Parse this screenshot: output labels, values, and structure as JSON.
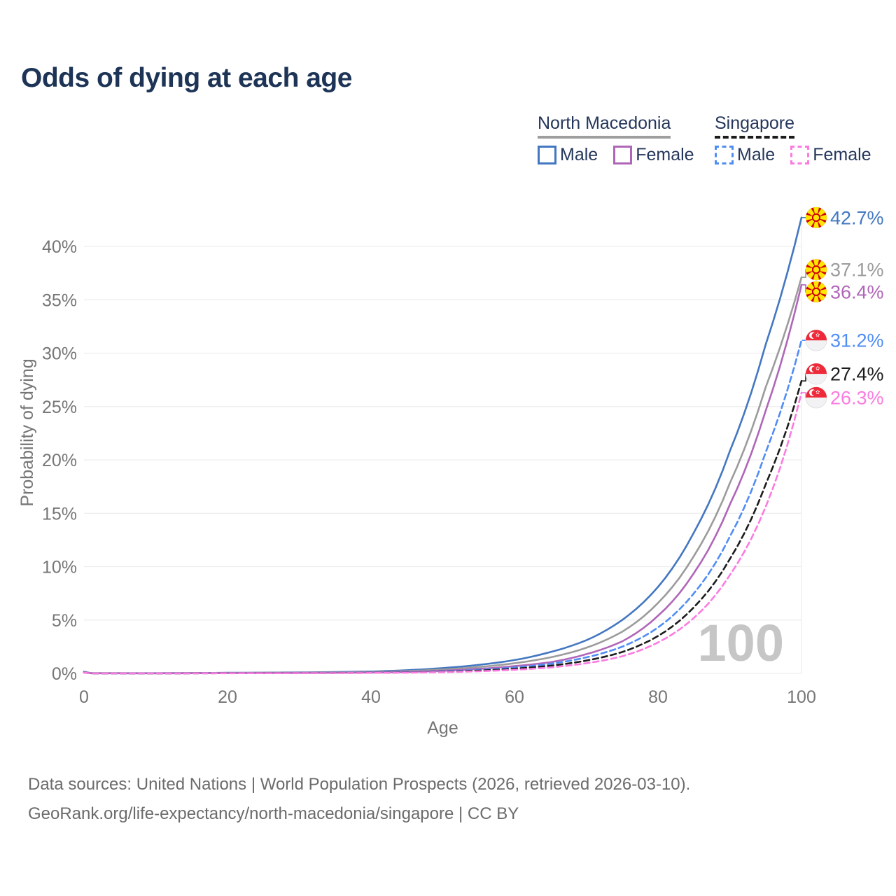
{
  "title": "Odds of dying at each age",
  "colors": {
    "title_text": "#1d3456",
    "legend_text": "#24365b",
    "axis_text": "#767676",
    "gridline": "#ededed",
    "watermark": "#c6c6c6",
    "footer_text": "#6b6b6b",
    "nm_male": "#4377c1",
    "nm_both": "#9b9b9b",
    "nm_female": "#b066b8",
    "sg_male": "#4f8df5",
    "sg_both": "#1c1c1c",
    "sg_female": "#fb7be0"
  },
  "legend": {
    "groups": [
      {
        "title": "North Macedonia",
        "line_style": "solid",
        "line_color": "#9e9e9e",
        "entries": [
          {
            "label": "Male",
            "color": "#4377c1",
            "dashed": false
          },
          {
            "label": "Female",
            "color": "#b066b8",
            "dashed": false
          }
        ]
      },
      {
        "title": "Singapore",
        "line_style": "dashed",
        "line_color": "#1c1c1c",
        "entries": [
          {
            "label": "Male",
            "color": "#4f8df5",
            "dashed": true
          },
          {
            "label": "Female",
            "color": "#fb7be0",
            "dashed": true
          }
        ]
      }
    ]
  },
  "chart_data": {
    "type": "line",
    "title": "Odds of dying at each age",
    "xlabel": "Age",
    "ylabel": "Probability of dying",
    "xlim": [
      0,
      100
    ],
    "ylim": [
      0,
      43.5
    ],
    "x_ticks": [
      0,
      20,
      40,
      60,
      80,
      100
    ],
    "y_ticks_percent": [
      0,
      5,
      10,
      15,
      20,
      25,
      30,
      35,
      40
    ],
    "grid": true,
    "watermark": "100",
    "unit": "percent probability of dying at each age",
    "anchor_ages": [
      0,
      1,
      10,
      20,
      30,
      40,
      50,
      55,
      60,
      65,
      70,
      75,
      80,
      85,
      90,
      95,
      100
    ],
    "series": [
      {
        "name": "North Macedonia Male",
        "slug": "north-macedonia-male",
        "country": "North Macedonia",
        "sex": "Male",
        "flag": "mk",
        "color": "#4377c1",
        "dashed": false,
        "end_label": "42.7%",
        "end_value": 42.7,
        "label_dy": 0,
        "values": [
          0.16,
          0.02,
          0.02,
          0.06,
          0.09,
          0.18,
          0.5,
          0.8,
          1.25,
          2.0,
          3.1,
          5.0,
          8.1,
          13.2,
          20.8,
          30.8,
          42.7
        ]
      },
      {
        "name": "North Macedonia Both sexes",
        "slug": "north-macedonia-both",
        "country": "North Macedonia",
        "sex": "Both sexes",
        "flag": "mk",
        "color": "#9b9b9b",
        "dashed": false,
        "end_label": "37.1%",
        "end_value": 37.1,
        "label_dy": -11,
        "values": [
          0.14,
          0.018,
          0.015,
          0.045,
          0.07,
          0.13,
          0.37,
          0.6,
          0.95,
          1.5,
          2.4,
          3.9,
          6.6,
          11.0,
          17.8,
          26.8,
          37.1
        ]
      },
      {
        "name": "North Macedonia Female",
        "slug": "north-macedonia-female",
        "country": "North Macedonia",
        "sex": "Female",
        "flag": "mk",
        "color": "#b066b8",
        "dashed": false,
        "end_label": "36.4%",
        "end_value": 36.4,
        "label_dy": 10,
        "values": [
          0.12,
          0.015,
          0.01,
          0.03,
          0.05,
          0.09,
          0.25,
          0.42,
          0.68,
          1.05,
          1.8,
          3.0,
          5.4,
          9.4,
          15.8,
          24.6,
          36.4
        ]
      },
      {
        "name": "Singapore Male",
        "slug": "singapore-male",
        "country": "Singapore",
        "sex": "Male",
        "flag": "sg",
        "color": "#4f8df5",
        "dashed": true,
        "end_label": "31.2%",
        "end_value": 31.2,
        "label_dy": 0,
        "values": [
          0.09,
          0.01,
          0.008,
          0.025,
          0.04,
          0.07,
          0.2,
          0.33,
          0.55,
          0.9,
          1.5,
          2.5,
          4.3,
          7.5,
          12.8,
          20.7,
          31.2
        ]
      },
      {
        "name": "Singapore Both sexes",
        "slug": "singapore-both",
        "country": "Singapore",
        "sex": "Both sexes",
        "flag": "sg",
        "color": "#1c1c1c",
        "dashed": true,
        "end_label": "27.4%",
        "end_value": 27.4,
        "label_dy": -10,
        "values": [
          0.08,
          0.009,
          0.006,
          0.02,
          0.03,
          0.055,
          0.15,
          0.26,
          0.44,
          0.72,
          1.2,
          2.0,
          3.5,
          6.2,
          10.7,
          17.7,
          27.4
        ]
      },
      {
        "name": "Singapore Female",
        "slug": "singapore-female",
        "country": "Singapore",
        "sex": "Female",
        "flag": "sg",
        "color": "#fb7be0",
        "dashed": true,
        "end_label": "26.3%",
        "end_value": 26.3,
        "label_dy": 7,
        "values": [
          0.07,
          0.008,
          0.005,
          0.015,
          0.025,
          0.045,
          0.12,
          0.2,
          0.34,
          0.56,
          0.95,
          1.6,
          2.9,
          5.2,
          9.2,
          15.6,
          26.3
        ]
      }
    ]
  },
  "footer": {
    "line1": "Data sources: United Nations | World Population Prospects (2026, retrieved 2026-03-10).",
    "line2": "GeoRank.org/life-expectancy/north-macedonia/singapore | CC BY"
  }
}
